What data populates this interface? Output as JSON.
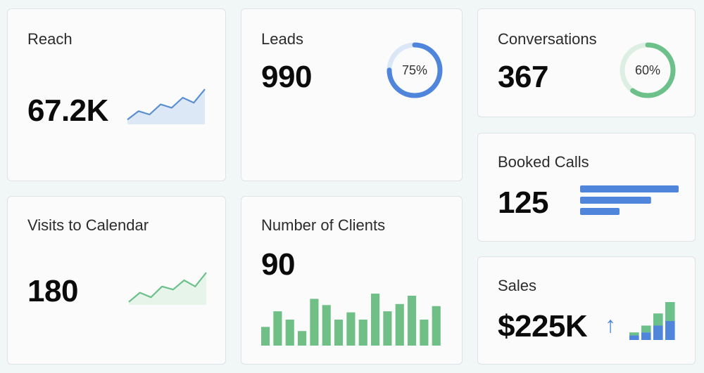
{
  "colors": {
    "blue": "#4f86dc",
    "blue_light": "#dbe6f6",
    "green": "#6cc08a",
    "green_light": "#dcefe2",
    "green_bar": "#6fbf86",
    "teal_bar": "#67b88a"
  },
  "cards": {
    "reach": {
      "title": "Reach",
      "value": "67.2K",
      "trend": [
        0.1,
        0.35,
        0.25,
        0.55,
        0.45,
        0.75,
        0.6,
        1.0
      ]
    },
    "leads": {
      "title": "Leads",
      "value": "990",
      "percent_label": "75%",
      "percent": 0.75
    },
    "conversations": {
      "title": "Conversations",
      "value": "367",
      "percent_label": "60%",
      "percent": 0.6
    },
    "booked_calls": {
      "title": "Booked Calls",
      "value": "125",
      "bars": [
        1.0,
        0.72,
        0.4
      ]
    },
    "visits": {
      "title": "Visits to Calendar",
      "value": "180",
      "trend": [
        0.05,
        0.35,
        0.2,
        0.55,
        0.45,
        0.75,
        0.55,
        1.0
      ]
    },
    "clients": {
      "title": "Number of Clients",
      "value": "90",
      "bars": [
        0.36,
        0.66,
        0.5,
        0.28,
        0.9,
        0.78,
        0.5,
        0.64,
        0.5,
        1.0,
        0.66,
        0.8,
        0.96,
        0.5,
        0.76
      ]
    },
    "sales": {
      "title": "Sales",
      "value": "$225K",
      "arrow": "↑",
      "bars": [
        {
          "total": 0.2,
          "blue": 0.12
        },
        {
          "total": 0.38,
          "blue": 0.2
        },
        {
          "total": 0.7,
          "blue": 0.38
        },
        {
          "total": 1.0,
          "blue": 0.5
        }
      ]
    }
  }
}
